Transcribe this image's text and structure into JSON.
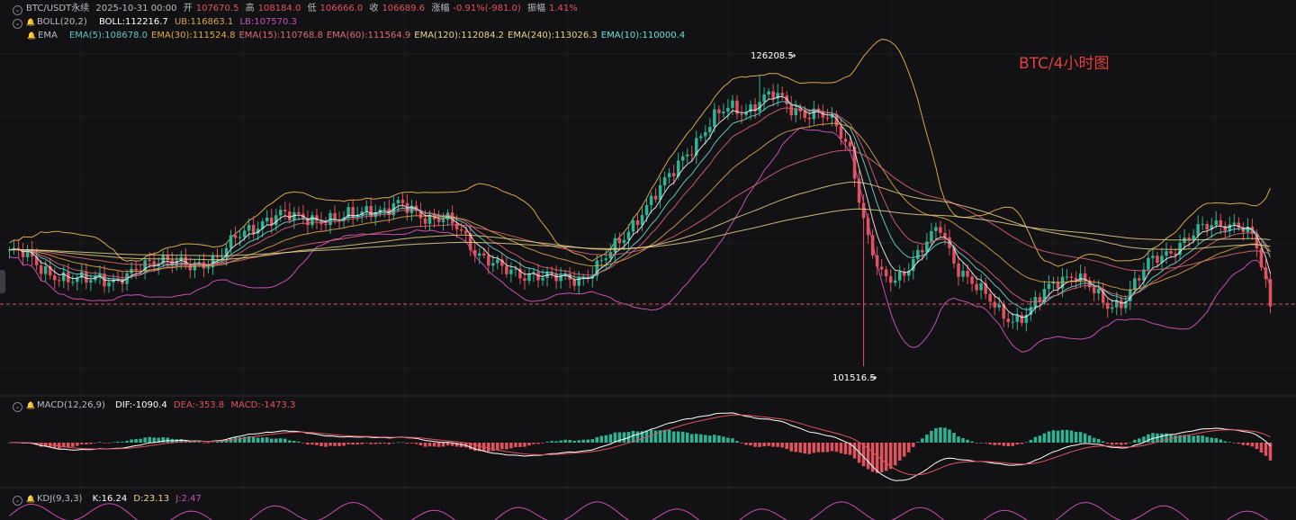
{
  "header": {
    "symbol": "BTC/USDT永续",
    "datetime": "2025-10-31 00:00",
    "open_label": "开",
    "open": "107670.5",
    "high_label": "高",
    "high": "108184.0",
    "low_label": "低",
    "low": "106666.0",
    "close_label": "收",
    "close": "106689.6",
    "change_label": "涨幅",
    "change": "-0.91%(-981.0)",
    "amp_label": "振幅",
    "amp": "1.41%"
  },
  "boll": {
    "label": "BOLL(20,2)",
    "mid": "BOLL:112216.7",
    "ub": "UB:116863.1",
    "lb": "LB:107570.3"
  },
  "ema": {
    "label": "EMA",
    "items": [
      {
        "text": "EMA(5):108678.0",
        "color": "#5ec6c0"
      },
      {
        "text": "EMA(30):111524.8",
        "color": "#e0a94a"
      },
      {
        "text": "EMA(15):110768.8",
        "color": "#e06a78"
      },
      {
        "text": "EMA(60):111564.9",
        "color": "#e06a78"
      },
      {
        "text": "EMA(120):112084.2",
        "color": "#e8d48a"
      },
      {
        "text": "EMA(240):113026.3",
        "color": "#e8d48a"
      },
      {
        "text": "EMA(10):110000.4",
        "color": "#6ee0d8"
      }
    ]
  },
  "annotation_title": "BTC/4小时图",
  "macd": {
    "label": "MACD(12,26,9)",
    "dif": "DIF:-1090.4",
    "dea": "DEA:-353.8",
    "macd": "MACD:-1473.3"
  },
  "kdj": {
    "label": "KDJ(9,3,3)",
    "k": "K:16.24",
    "d": "D:23.13",
    "j": "J:2.47"
  },
  "colors": {
    "up": "#2eb394",
    "down": "#e0525e",
    "bg": "#121214",
    "boll_ub": "#d8a64c",
    "boll_lb": "#c64fb4",
    "dif": "#ffffff",
    "dea": "#e0525e"
  },
  "chart_data": {
    "type": "candlestick",
    "timeframe": "4h",
    "max_marker": "126208.5",
    "min_marker": "101516.5",
    "ylim": [
      99000,
      129500
    ],
    "close_series": [
      111200,
      111000,
      110000,
      109300,
      108600,
      108800,
      109300,
      108600,
      109000,
      110200,
      110800,
      110300,
      109800,
      110300,
      111000,
      112200,
      113000,
      114000,
      114400,
      114000,
      114100,
      114000,
      113800,
      114400,
      115000,
      114600,
      115100,
      114700,
      114100,
      113900,
      113000,
      111400,
      110500,
      109500,
      109200,
      109500,
      109000,
      108800,
      108900,
      109900,
      111000,
      112500,
      114500,
      116000,
      117500,
      119500,
      121000,
      122500,
      123500,
      123200,
      124000,
      124500,
      123500,
      123000,
      122800,
      122000,
      120000,
      113200,
      109000,
      108800,
      110300,
      111800,
      113200,
      110200,
      108900,
      107400,
      106000,
      105500,
      106200,
      107800,
      109000,
      109400,
      108100,
      106600,
      106900,
      108600,
      110300,
      111000,
      112000,
      112800,
      113400,
      113700,
      113500,
      112000,
      106700
    ]
  }
}
